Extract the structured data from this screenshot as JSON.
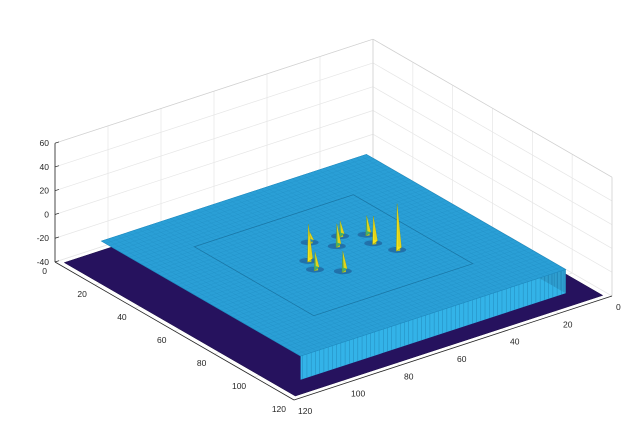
{
  "chart_data": {
    "type": "surface",
    "title": "",
    "xlabel": "",
    "ylabel": "",
    "zlabel": "",
    "grid": true,
    "xlim": [
      0,
      120
    ],
    "ylim": [
      0,
      120
    ],
    "zlim": [
      -40,
      60
    ],
    "x_ticks": [
      0,
      20,
      40,
      60,
      80,
      100,
      120
    ],
    "y_ticks": [
      0,
      20,
      40,
      60,
      80,
      100,
      120
    ],
    "z_ticks": [
      -40,
      -20,
      0,
      20,
      40,
      60
    ],
    "x_tick_labels": [
      "0",
      "20",
      "40",
      "60",
      "80",
      "100",
      "120"
    ],
    "y_tick_labels": [
      "0",
      "20",
      "40",
      "60",
      "80",
      "100",
      "120"
    ],
    "z_tick_labels": [
      "-40",
      "-20",
      "0",
      "20",
      "40",
      "60"
    ],
    "surface": {
      "base_level": -40,
      "plateau": {
        "x_range": [
          10,
          110
        ],
        "y_range": [
          10,
          110
        ],
        "z": -20
      },
      "inner_region": {
        "x_range": [
          30,
          90
        ],
        "y_range": [
          30,
          90
        ],
        "z": -20
      },
      "peaks": [
        {
          "x": 45,
          "y": 60,
          "height": 22
        },
        {
          "x": 50,
          "y": 50,
          "height": 12
        },
        {
          "x": 43,
          "y": 54,
          "height": 15
        },
        {
          "x": 42,
          "y": 68,
          "height": 38
        },
        {
          "x": 55,
          "y": 55,
          "height": 18
        },
        {
          "x": 60,
          "y": 48,
          "height": 8
        },
        {
          "x": 68,
          "y": 58,
          "height": 30
        },
        {
          "x": 70,
          "y": 64,
          "height": 14
        },
        {
          "x": 64,
          "y": 70,
          "height": 16
        }
      ]
    },
    "colors": {
      "base": "#26125e",
      "plateau_top": "#2a9fd6",
      "plateau_side": "#33b3e8",
      "peak_high": "#f5e51b",
      "peak_mid": "#3cb371",
      "peak_low": "#1f8fbf"
    }
  }
}
